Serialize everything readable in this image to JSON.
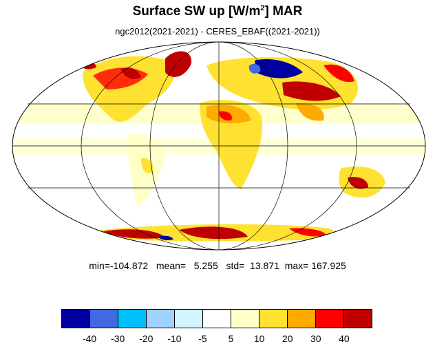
{
  "title": {
    "main": "Surface SW up [W/m",
    "sup": "2",
    "tail": "]  MAR"
  },
  "subtitle": "ngc2012(2021-2021) - CERES_EBAF((2021-2021))",
  "stats": {
    "min": "min=-104.872",
    "mean": "mean=   5.255",
    "std": "std=  13.871",
    "max": "max= 167.925"
  },
  "colorbar": {
    "colors": [
      "#0000a0",
      "#4169e1",
      "#00bfff",
      "#a0d2ff",
      "#d2f5ff",
      "#ffffff",
      "#ffffc8",
      "#ffe132",
      "#ffaa00",
      "#ff0000",
      "#c00000"
    ],
    "ticks": [
      "-40",
      "-30",
      "-20",
      "-10",
      "-5",
      "5",
      "10",
      "20",
      "30",
      "40"
    ]
  },
  "map": {
    "projection": "mollweide",
    "grid": true,
    "anomaly_regions": [
      {
        "name": "greenland",
        "level": "positive-strong"
      },
      {
        "name": "canada",
        "level": "positive-strong"
      },
      {
        "name": "siberia-west",
        "level": "negative-strong"
      },
      {
        "name": "central-asia",
        "level": "positive-strong"
      },
      {
        "name": "sahara",
        "level": "positive-moderate"
      },
      {
        "name": "australia",
        "level": "positive-strong"
      },
      {
        "name": "antarctica",
        "level": "positive-strong"
      }
    ]
  }
}
